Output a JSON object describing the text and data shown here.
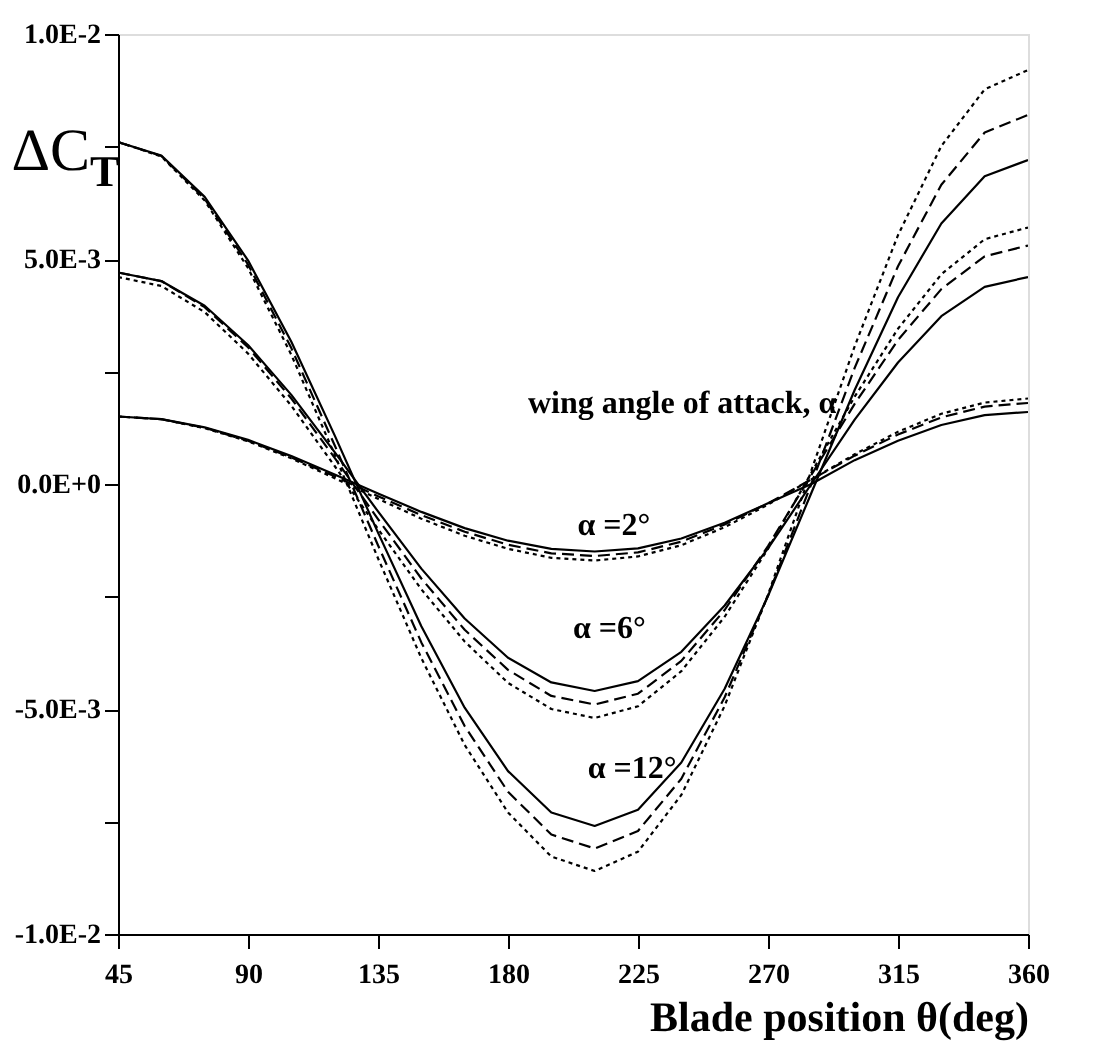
{
  "chart_data": {
    "type": "line",
    "xlabel": "Blade position θ(deg)",
    "ylabel": "ΔC$_{T}$",
    "x": [
      45,
      60,
      75,
      90,
      105,
      120,
      135,
      150,
      165,
      180,
      195,
      210,
      225,
      240,
      255,
      270,
      285,
      300,
      315,
      330,
      345,
      360
    ],
    "series": [
      {
        "color": "#000000",
        "line_style": "solid",
        "values": [
          0.0076,
          0.0073,
          0.00638,
          0.00497,
          0.00316,
          0.00108,
          -0.00108,
          -0.00316,
          -0.00497,
          -0.00638,
          -0.0073,
          -0.0076,
          -0.00724,
          -0.00619,
          -0.00455,
          -0.00249,
          -0.0002,
          0.00209,
          0.00415,
          0.00579,
          0.00684,
          0.0072
        ]
      },
      {
        "color": "#000000",
        "line_style": "dashed",
        "values": [
          0.0076,
          0.00729,
          0.00634,
          0.00488,
          0.00302,
          0.00086,
          -0.00136,
          -0.00352,
          -0.00538,
          -0.00684,
          -0.00779,
          -0.0081,
          -0.00771,
          -0.00655,
          -0.00474,
          -0.00248,
          0.0,
          0.00258,
          0.00484,
          0.00665,
          0.00781,
          0.0082
        ]
      },
      {
        "color": "#000000",
        "line_style": "dotted",
        "values": [
          0.0076,
          0.00728,
          0.0063,
          0.0048,
          0.00287,
          0.00065,
          -0.00165,
          -0.00387,
          -0.0058,
          -0.0073,
          -0.00828,
          -0.0086,
          -0.00817,
          -0.00691,
          -0.00493,
          -0.00246,
          0.0003,
          0.00306,
          0.00553,
          0.00751,
          0.00877,
          0.0092
        ]
      },
      {
        "color": "#000000",
        "line_style": "solid",
        "values": [
          0.0047,
          0.00451,
          0.00396,
          0.00309,
          0.00198,
          0.00071,
          -0.00061,
          -0.00188,
          -0.00299,
          -0.00386,
          -0.00441,
          -0.0046,
          -0.00438,
          -0.00373,
          -0.0027,
          -0.00143,
          0.0,
          0.00143,
          0.0027,
          0.00373,
          0.00438,
          0.0046
        ]
      },
      {
        "color": "#000000",
        "line_style": "dashed",
        "values": [
          0.0047,
          0.00451,
          0.00393,
          0.00304,
          0.0019,
          0.00058,
          -0.00078,
          -0.0021,
          -0.00324,
          -0.00413,
          -0.00471,
          -0.0049,
          -0.00466,
          -0.00393,
          -0.0028,
          -0.00138,
          0.0002,
          0.00178,
          0.0032,
          0.00433,
          0.00506,
          0.0053
        ]
      },
      {
        "color": "#000000",
        "line_style": "dotted",
        "values": [
          0.0046,
          0.0044,
          0.00382,
          0.0029,
          0.00174,
          0.0004,
          -0.001,
          -0.00234,
          -0.0035,
          -0.00442,
          -0.005,
          -0.0052,
          -0.00494,
          -0.00416,
          -0.00295,
          -0.00144,
          0.00025,
          0.00194,
          0.00345,
          0.00466,
          0.00544,
          0.0057
        ]
      },
      {
        "color": "#000000",
        "line_style": "solid",
        "values": [
          0.0015,
          0.00144,
          0.00126,
          0.00098,
          0.00062,
          0.00021,
          -0.00021,
          -0.00062,
          -0.00098,
          -0.00126,
          -0.00144,
          -0.0015,
          -0.00143,
          -0.00121,
          -0.00086,
          -0.00043,
          0.0,
          0.00053,
          0.00096,
          0.00131,
          0.00153,
          0.0016
        ]
      },
      {
        "color": "#000000",
        "line_style": "dashed",
        "values": [
          0.0015,
          0.00144,
          0.00125,
          0.00096,
          0.00059,
          0.00017,
          -0.00027,
          -0.00069,
          -0.00106,
          -0.00135,
          -0.00154,
          -0.0016,
          -0.00152,
          -0.00128,
          -0.0009,
          -0.00043,
          0.0001,
          0.00063,
          0.0011,
          0.00148,
          0.00172,
          0.0018
        ]
      },
      {
        "color": "#000000",
        "line_style": "dotted",
        "values": [
          0.0015,
          0.00144,
          0.00124,
          0.00095,
          0.00057,
          0.00013,
          -0.00033,
          -0.00077,
          -0.00115,
          -0.00144,
          -0.00164,
          -0.0017,
          -0.00161,
          -0.00136,
          -0.00096,
          -0.00046,
          0.0001,
          0.00066,
          0.00116,
          0.00156,
          0.00181,
          0.0019
        ]
      }
    ],
    "xlim": [
      45,
      360
    ],
    "xticks": [
      45,
      90,
      135,
      180,
      225,
      270,
      315,
      360
    ],
    "ylim": [
      -0.01,
      0.01
    ],
    "yticks": [
      {
        "value": -0.01,
        "label": "-1.0E-2"
      },
      {
        "value": -0.0075,
        "label": null
      },
      {
        "value": -0.005,
        "label": "-5.0E-3"
      },
      {
        "value": -0.0025,
        "label": null
      },
      {
        "value": 0,
        "label": "0.0E+0"
      },
      {
        "value": 0.0025,
        "label": null
      },
      {
        "value": 0.005,
        "label": "5.0E-3"
      },
      {
        "value": 0.0075,
        "label": null
      },
      {
        "value": 0.01,
        "label": "1.0E-2"
      }
    ],
    "annotations": [
      "wing angle of attack, α",
      "α =2°",
      "α =6°",
      "α =12°"
    ],
    "grid": false
  }
}
